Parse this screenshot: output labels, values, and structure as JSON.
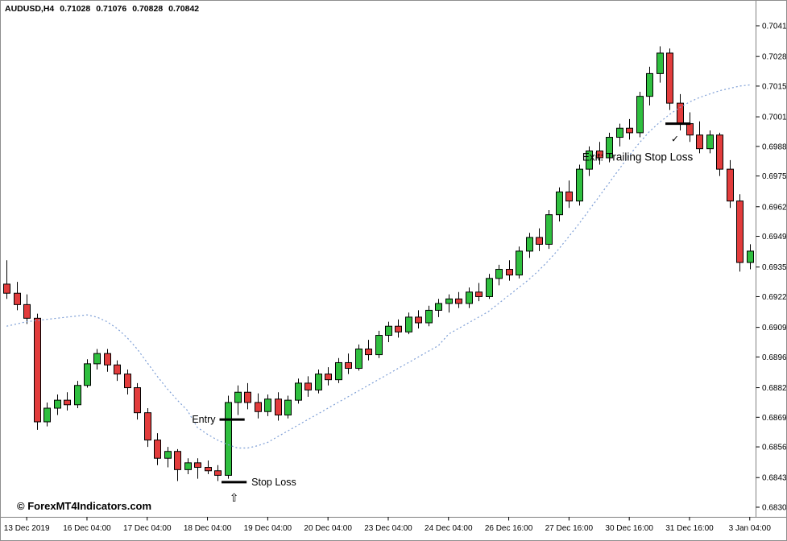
{
  "window": {
    "symbol_period": "AUDUSD,H4",
    "open": "0.71028",
    "high": "0.71076",
    "low": "0.70828",
    "close": "0.70842"
  },
  "footer": {
    "copyright": "© ForexMT4Indicators.com"
  },
  "colors": {
    "background": "#ffffff",
    "bull": "#2fbf3f",
    "bear": "#e23c3c",
    "candle_outline": "#000000",
    "wick": "#000000",
    "ma": "#7e9fd6",
    "axis_text": "#000000",
    "frame": "#808080",
    "annotation": "#000000"
  },
  "chart_data": {
    "type": "candlestick",
    "symbol": "AUDUSD",
    "timeframe": "H4",
    "y_axis": {
      "min": 0.683,
      "max": 0.70415,
      "labels": [
        "0.70415",
        "0.70280",
        "0.70150",
        "0.70015",
        "0.69885",
        "0.69755",
        "0.69620",
        "0.69490",
        "0.69355",
        "0.69225",
        "0.69090",
        "0.68960",
        "0.68825",
        "0.68695",
        "0.68565",
        "0.68430",
        "0.68300"
      ]
    },
    "x_axis": {
      "labels": [
        {
          "index": 2,
          "text": "13 Dec 2019"
        },
        {
          "index": 8,
          "text": "16 Dec 04:00"
        },
        {
          "index": 14,
          "text": "17 Dec 04:00"
        },
        {
          "index": 20,
          "text": "18 Dec 04:00"
        },
        {
          "index": 26,
          "text": "19 Dec 04:00"
        },
        {
          "index": 32,
          "text": "20 Dec 04:00"
        },
        {
          "index": 38,
          "text": "23 Dec 04:00"
        },
        {
          "index": 44,
          "text": "24 Dec 04:00"
        },
        {
          "index": 50,
          "text": "26 Dec 16:00"
        },
        {
          "index": 56,
          "text": "27 Dec 16:00"
        },
        {
          "index": 62,
          "text": "30 Dec 16:00"
        },
        {
          "index": 68,
          "text": "31 Dec 16:00"
        },
        {
          "index": 74,
          "text": "3 Jan 04:00"
        }
      ]
    },
    "candles": [
      [
        0.6928,
        0.69385,
        0.69215,
        0.6924
      ],
      [
        0.6924,
        0.6929,
        0.69165,
        0.6919
      ],
      [
        0.6919,
        0.69235,
        0.69105,
        0.6913
      ],
      [
        0.6913,
        0.6915,
        0.6864,
        0.68675
      ],
      [
        0.68675,
        0.6876,
        0.68655,
        0.68735
      ],
      [
        0.68735,
        0.68795,
        0.68705,
        0.6877
      ],
      [
        0.6877,
        0.68805,
        0.68725,
        0.6875
      ],
      [
        0.6875,
        0.68855,
        0.68735,
        0.68835
      ],
      [
        0.68835,
        0.6895,
        0.68825,
        0.6893
      ],
      [
        0.6893,
        0.68995,
        0.68905,
        0.68975
      ],
      [
        0.68975,
        0.68995,
        0.68895,
        0.68925
      ],
      [
        0.68925,
        0.68945,
        0.68855,
        0.68885
      ],
      [
        0.68885,
        0.68905,
        0.68795,
        0.68825
      ],
      [
        0.68825,
        0.68845,
        0.68685,
        0.68715
      ],
      [
        0.68715,
        0.68735,
        0.68565,
        0.68595
      ],
      [
        0.68595,
        0.68625,
        0.68485,
        0.68515
      ],
      [
        0.68515,
        0.68565,
        0.68475,
        0.68545
      ],
      [
        0.68545,
        0.68555,
        0.68415,
        0.68465
      ],
      [
        0.68465,
        0.68515,
        0.68445,
        0.68495
      ],
      [
        0.68495,
        0.68515,
        0.68425,
        0.68475
      ],
      [
        0.68475,
        0.68505,
        0.68445,
        0.6846
      ],
      [
        0.6846,
        0.68485,
        0.68415,
        0.6844
      ],
      [
        0.6844,
        0.6879,
        0.68425,
        0.6876
      ],
      [
        0.6876,
        0.68835,
        0.68705,
        0.68805
      ],
      [
        0.68805,
        0.68845,
        0.6873,
        0.6876
      ],
      [
        0.6876,
        0.688,
        0.6869,
        0.6872
      ],
      [
        0.6872,
        0.68795,
        0.687,
        0.68775
      ],
      [
        0.68775,
        0.68805,
        0.6868,
        0.68705
      ],
      [
        0.68705,
        0.6879,
        0.6869,
        0.6877
      ],
      [
        0.6877,
        0.68865,
        0.68755,
        0.68845
      ],
      [
        0.68845,
        0.68875,
        0.68785,
        0.68815
      ],
      [
        0.68815,
        0.68905,
        0.688,
        0.68885
      ],
      [
        0.68885,
        0.68915,
        0.68835,
        0.6886
      ],
      [
        0.6886,
        0.68955,
        0.68845,
        0.68935
      ],
      [
        0.68935,
        0.68975,
        0.68885,
        0.6891
      ],
      [
        0.6891,
        0.69015,
        0.689,
        0.68995
      ],
      [
        0.68995,
        0.69035,
        0.68945,
        0.6897
      ],
      [
        0.6897,
        0.69075,
        0.68955,
        0.69055
      ],
      [
        0.69055,
        0.69115,
        0.69025,
        0.69095
      ],
      [
        0.69095,
        0.69125,
        0.69045,
        0.6907
      ],
      [
        0.6907,
        0.69155,
        0.6906,
        0.69135
      ],
      [
        0.69135,
        0.69165,
        0.69085,
        0.6911
      ],
      [
        0.6911,
        0.69185,
        0.69095,
        0.69165
      ],
      [
        0.69165,
        0.69215,
        0.69135,
        0.69195
      ],
      [
        0.69195,
        0.69235,
        0.69155,
        0.69215
      ],
      [
        0.69215,
        0.69245,
        0.69175,
        0.69195
      ],
      [
        0.69195,
        0.69265,
        0.69175,
        0.69245
      ],
      [
        0.69245,
        0.69285,
        0.69205,
        0.69225
      ],
      [
        0.69225,
        0.69325,
        0.69215,
        0.69305
      ],
      [
        0.69305,
        0.69365,
        0.69275,
        0.69345
      ],
      [
        0.69345,
        0.69385,
        0.69295,
        0.6932
      ],
      [
        0.6932,
        0.69445,
        0.69305,
        0.69425
      ],
      [
        0.69425,
        0.69505,
        0.69395,
        0.69485
      ],
      [
        0.69485,
        0.69525,
        0.69425,
        0.69455
      ],
      [
        0.69455,
        0.69605,
        0.69435,
        0.69585
      ],
      [
        0.69585,
        0.69705,
        0.69555,
        0.69685
      ],
      [
        0.69685,
        0.69735,
        0.69615,
        0.69645
      ],
      [
        0.69645,
        0.69805,
        0.69625,
        0.69785
      ],
      [
        0.69785,
        0.69885,
        0.69755,
        0.69865
      ],
      [
        0.69865,
        0.69905,
        0.69805,
        0.69835
      ],
      [
        0.69835,
        0.69945,
        0.69815,
        0.69925
      ],
      [
        0.69925,
        0.69985,
        0.69885,
        0.69965
      ],
      [
        0.69965,
        0.70005,
        0.69915,
        0.69945
      ],
      [
        0.69945,
        0.70125,
        0.69925,
        0.70105
      ],
      [
        0.70105,
        0.70235,
        0.70065,
        0.70205
      ],
      [
        0.70205,
        0.70325,
        0.70165,
        0.70295
      ],
      [
        0.70295,
        0.70315,
        0.70045,
        0.70075
      ],
      [
        0.70075,
        0.70115,
        0.69955,
        0.69985
      ],
      [
        0.69985,
        0.70035,
        0.69905,
        0.69935
      ],
      [
        0.69935,
        0.69995,
        0.69855,
        0.69875
      ],
      [
        0.69875,
        0.69955,
        0.69855,
        0.69935
      ],
      [
        0.69935,
        0.69945,
        0.69755,
        0.69785
      ],
      [
        0.69785,
        0.69825,
        0.69615,
        0.69645
      ],
      [
        0.69645,
        0.69675,
        0.69335,
        0.69375
      ],
      [
        0.69375,
        0.69455,
        0.69345,
        0.69425
      ]
    ],
    "ma": [
      0.69095,
      0.69105,
      0.69115,
      0.6912,
      0.69125,
      0.6913,
      0.69135,
      0.6914,
      0.69145,
      0.69135,
      0.69115,
      0.69085,
      0.69045,
      0.68995,
      0.68935,
      0.68875,
      0.6882,
      0.6877,
      0.68725,
      0.6865,
      0.6862,
      0.68595,
      0.68575,
      0.6856,
      0.6856,
      0.6857,
      0.68585,
      0.6861,
      0.68635,
      0.6866,
      0.68685,
      0.6871,
      0.68735,
      0.6876,
      0.68785,
      0.6881,
      0.68835,
      0.6886,
      0.68885,
      0.6891,
      0.68935,
      0.6896,
      0.68985,
      0.6901,
      0.6906,
      0.69085,
      0.6911,
      0.69135,
      0.6916,
      0.69195,
      0.6923,
      0.69265,
      0.693,
      0.6934,
      0.69385,
      0.69435,
      0.6949,
      0.69545,
      0.69605,
      0.69665,
      0.69725,
      0.69785,
      0.69845,
      0.699,
      0.6995,
      0.6999,
      0.70025,
      0.70055,
      0.7008,
      0.701,
      0.70115,
      0.7013,
      0.7014,
      0.7015,
      0.70155
    ],
    "annotations": {
      "entry": {
        "label": "Entry",
        "price": 0.68685,
        "from_index": 21.2,
        "to_index": 23.7
      },
      "stop_loss": {
        "label": "Stop Loss",
        "price": 0.6841,
        "from_index": 21.4,
        "to_index": 23.9,
        "marker": "⇧"
      },
      "exit": {
        "label": "Exit: Trailing Stop Loss",
        "price": 0.69985,
        "from_index": 65.6,
        "to_index": 68.1,
        "marker": "✓"
      }
    }
  }
}
